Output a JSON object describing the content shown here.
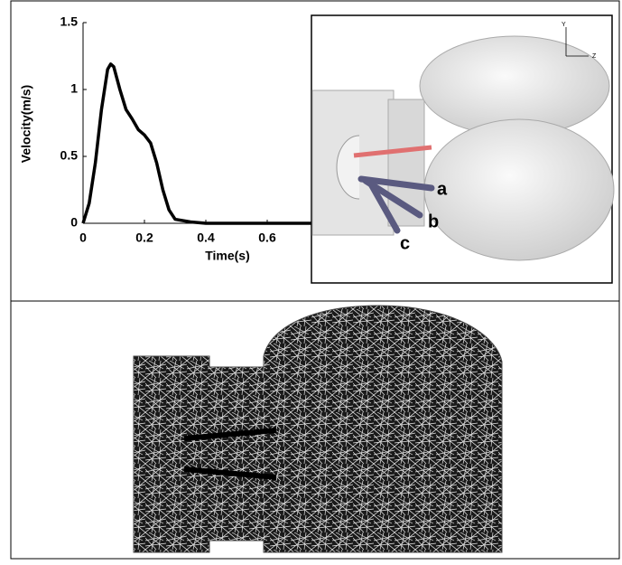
{
  "chart_data": {
    "type": "line",
    "x_label": "Time(s)",
    "y_label": "Velocity(m/s)",
    "x": [
      0,
      0.02,
      0.04,
      0.06,
      0.08,
      0.09,
      0.1,
      0.12,
      0.14,
      0.16,
      0.18,
      0.2,
      0.22,
      0.24,
      0.26,
      0.28,
      0.3,
      0.35,
      0.4,
      0.5,
      0.6,
      0.7,
      0.8
    ],
    "values": [
      0,
      0.15,
      0.45,
      0.85,
      1.15,
      1.19,
      1.17,
      1.0,
      0.85,
      0.78,
      0.7,
      0.66,
      0.6,
      0.45,
      0.25,
      0.1,
      0.03,
      0.01,
      0,
      0,
      0,
      0,
      0
    ],
    "color": "#000000",
    "xlim": [
      0,
      0.8
    ],
    "xticks": [
      0,
      0.2,
      0.4,
      0.6
    ],
    "ylim": [
      0,
      1.5
    ],
    "yticks": [
      0,
      0.5,
      1,
      1.5
    ]
  },
  "inset": {
    "labels": [
      "a",
      "b",
      "c"
    ],
    "axes": [
      "Y",
      "Z"
    ]
  }
}
